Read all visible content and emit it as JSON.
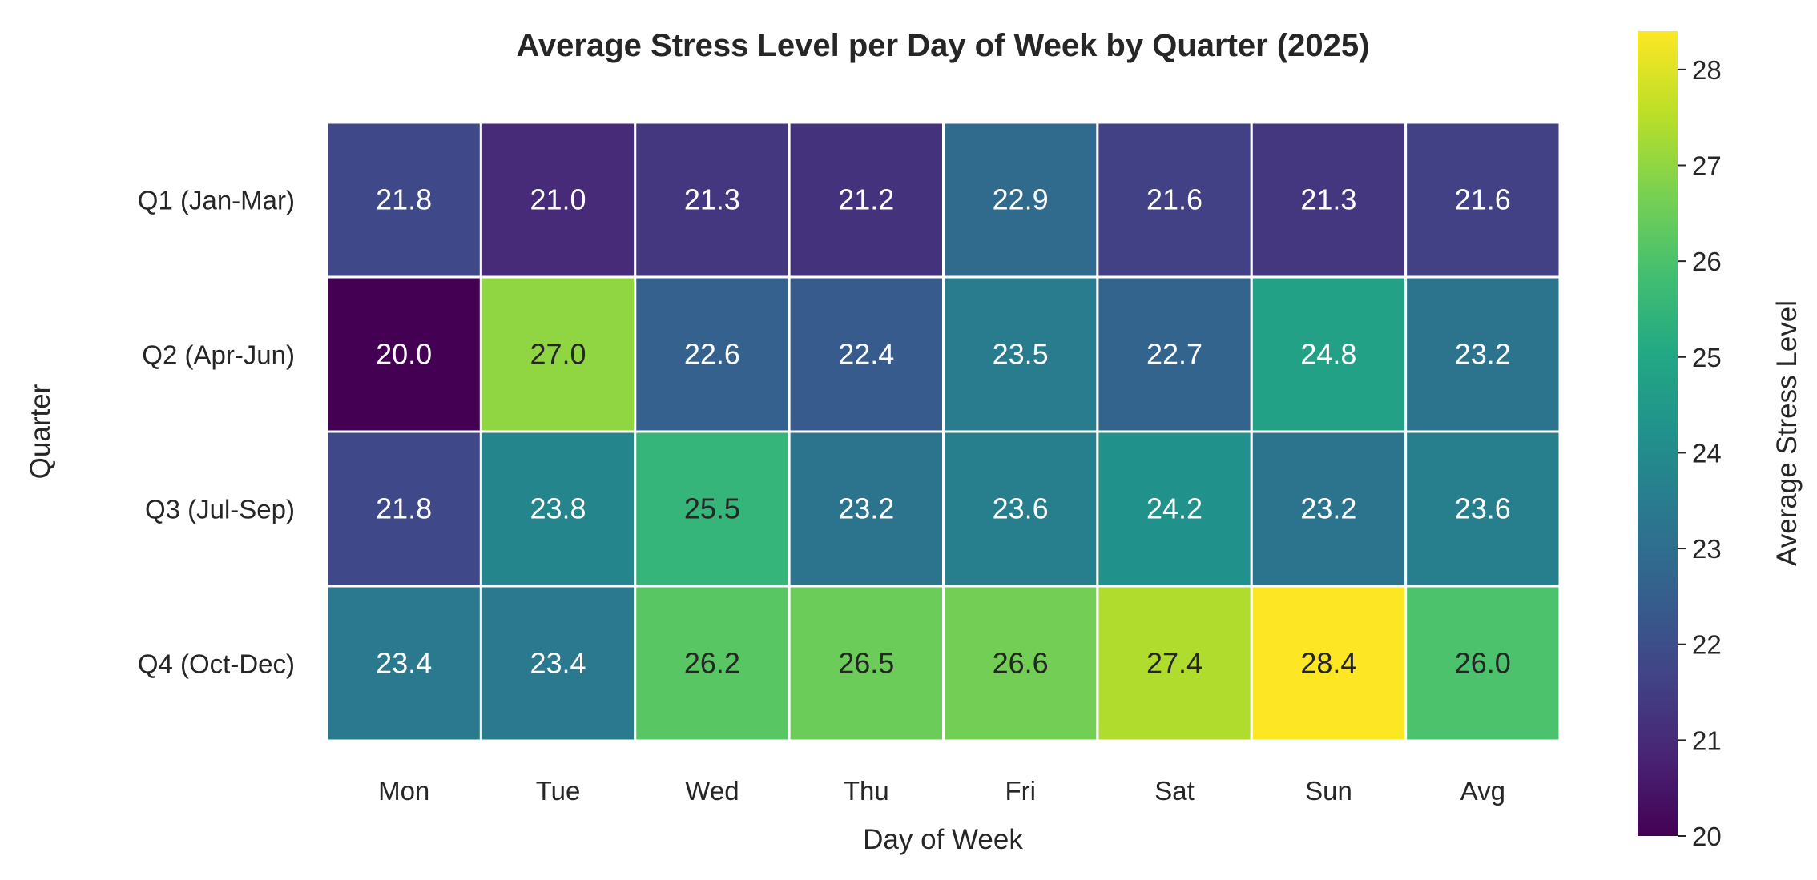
{
  "chart_data": {
    "type": "heatmap",
    "title": "Average Stress Level per Day of Week by Quarter (2025)",
    "xlabel": "Day of Week",
    "ylabel": "Quarter",
    "x_categories": [
      "Mon",
      "Tue",
      "Wed",
      "Thu",
      "Fri",
      "Sat",
      "Sun",
      "Avg"
    ],
    "y_categories": [
      "Q1 (Jan-Mar)",
      "Q2 (Apr-Jun)",
      "Q3 (Jul-Sep)",
      "Q4 (Oct-Dec)"
    ],
    "values": [
      [
        21.8,
        21.0,
        21.3,
        21.2,
        22.9,
        21.6,
        21.3,
        21.6
      ],
      [
        20.0,
        27.0,
        22.6,
        22.4,
        23.5,
        22.7,
        24.8,
        23.2
      ],
      [
        21.8,
        23.8,
        25.5,
        23.2,
        23.6,
        24.2,
        23.2,
        23.6
      ],
      [
        23.4,
        23.4,
        26.2,
        26.5,
        26.6,
        27.4,
        28.4,
        26.0
      ]
    ],
    "colormap": "viridis",
    "annotations": true,
    "value_format": "0.0",
    "colorbar": {
      "label": "Average Stress Level",
      "range": [
        20.0,
        28.4
      ],
      "ticks": [
        "20",
        "21",
        "22",
        "23",
        "24",
        "25",
        "26",
        "27",
        "28"
      ]
    },
    "cell_border_color": "#ffffff",
    "grid": false,
    "legend": "colorbar-right"
  }
}
